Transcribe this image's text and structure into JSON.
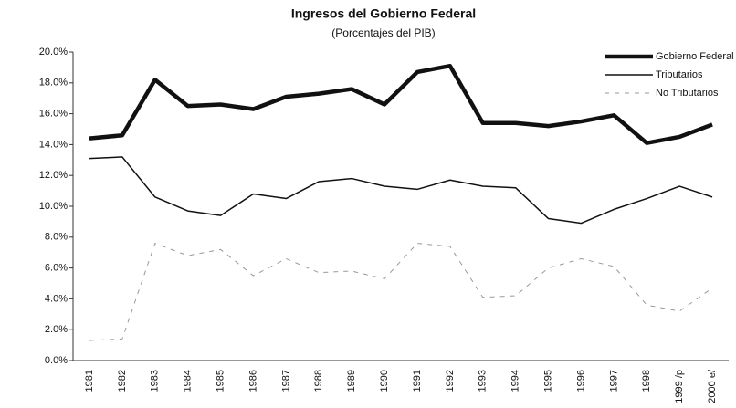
{
  "chart_data": {
    "type": "line",
    "title": "Ingresos del Gobierno Federal",
    "subtitle": "(Porcentajes del PIB)",
    "categories": [
      "1981",
      "1982",
      "1983",
      "1984",
      "1985",
      "1986",
      "1987",
      "1988",
      "1989",
      "1990",
      "1991",
      "1992",
      "1993",
      "1994",
      "1995",
      "1996",
      "1997",
      "1998",
      "1999 /p",
      "2000 e/"
    ],
    "series": [
      {
        "name": "Gobierno Federal",
        "color": "#111111",
        "line_width": 4.5,
        "line_style": "solid",
        "values": [
          14.4,
          14.6,
          18.2,
          16.5,
          16.6,
          16.3,
          17.1,
          17.3,
          17.6,
          16.6,
          18.7,
          19.1,
          15.4,
          15.4,
          15.2,
          15.5,
          15.9,
          14.1,
          14.5,
          15.3
        ]
      },
      {
        "name": "Tributarios",
        "color": "#111111",
        "line_width": 1.5,
        "line_style": "solid",
        "values": [
          13.1,
          13.2,
          10.6,
          9.7,
          9.4,
          10.8,
          10.5,
          11.6,
          11.8,
          11.3,
          11.1,
          11.7,
          11.3,
          11.2,
          9.2,
          8.9,
          9.8,
          10.5,
          11.3,
          10.6
        ]
      },
      {
        "name": "No Tributarios",
        "color": "#999999",
        "line_width": 1,
        "line_style": "dashed",
        "values": [
          1.3,
          1.4,
          7.6,
          6.8,
          7.2,
          5.5,
          6.6,
          5.7,
          5.8,
          5.3,
          7.6,
          7.4,
          4.1,
          4.2,
          6.0,
          6.6,
          6.1,
          3.6,
          3.2,
          4.7
        ]
      }
    ],
    "ylim": [
      0,
      20
    ],
    "yticks": [
      {
        "value": 0,
        "label": "0.0%"
      },
      {
        "value": 2,
        "label": "2.0%"
      },
      {
        "value": 4,
        "label": "4.0%"
      },
      {
        "value": 6,
        "label": "6.0%"
      },
      {
        "value": 8,
        "label": "8.0%"
      },
      {
        "value": 10,
        "label": "10.0%"
      },
      {
        "value": 12,
        "label": "12.0%"
      },
      {
        "value": 14,
        "label": "14.0%"
      },
      {
        "value": 16,
        "label": "16.0%"
      },
      {
        "value": 18,
        "label": "18.0%"
      },
      {
        "value": 20,
        "label": "20.0%"
      }
    ]
  }
}
